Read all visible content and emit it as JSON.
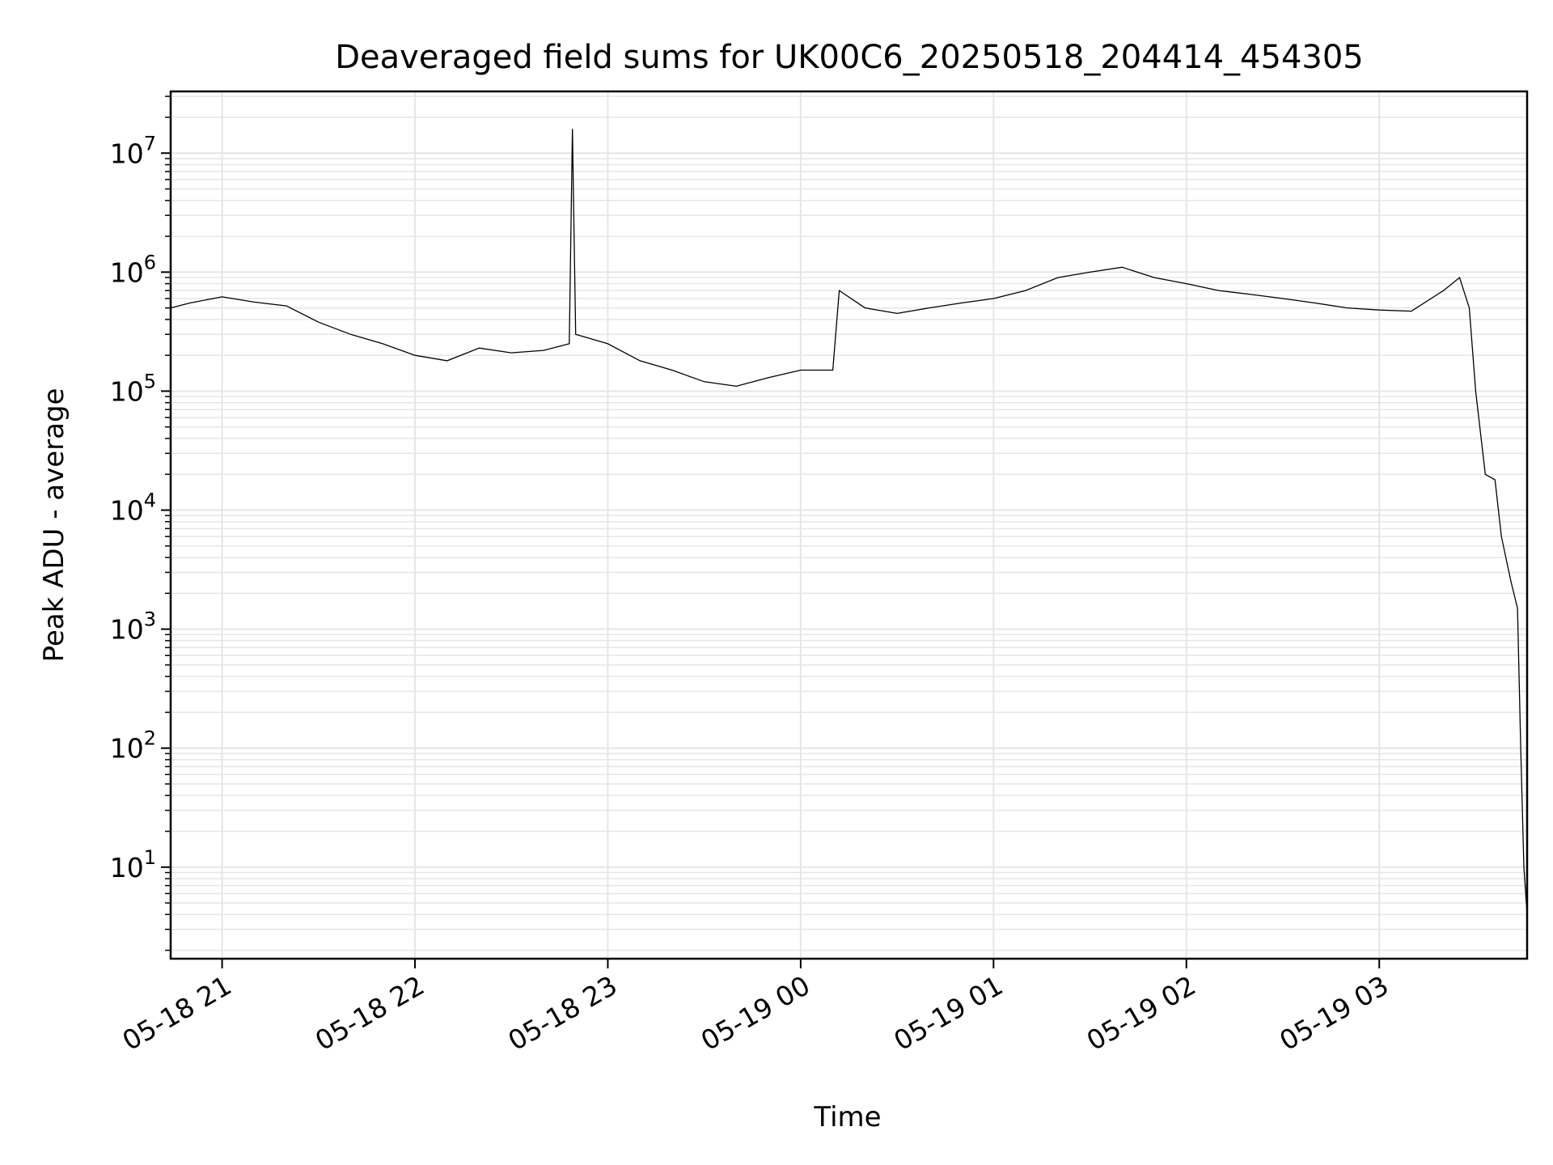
{
  "chart_data": {
    "type": "line",
    "title": "Deaveraged field sums for UK00C6_20250518_204414_454305",
    "xlabel": "Time",
    "ylabel": "Peak ADU - average",
    "yscale": "log",
    "ylim": [
      1.7,
      33000000
    ],
    "xlim": [
      "2025-05-18 20:44",
      "2025-05-19 03:46"
    ],
    "grid": true,
    "line_color": "#000000",
    "grid_color": "#e6e6e6",
    "x_ticks": [
      {
        "value": "2025-05-18 21:00",
        "label": "05-18 21"
      },
      {
        "value": "2025-05-18 22:00",
        "label": "05-18 22"
      },
      {
        "value": "2025-05-18 23:00",
        "label": "05-18 23"
      },
      {
        "value": "2025-05-19 00:00",
        "label": "05-19 00"
      },
      {
        "value": "2025-05-19 01:00",
        "label": "05-19 01"
      },
      {
        "value": "2025-05-19 02:00",
        "label": "05-19 02"
      },
      {
        "value": "2025-05-19 03:00",
        "label": "05-19 03"
      }
    ],
    "y_ticks": [
      {
        "value": 10,
        "base": "10",
        "exp": "1"
      },
      {
        "value": 100,
        "base": "10",
        "exp": "2"
      },
      {
        "value": 1000,
        "base": "10",
        "exp": "3"
      },
      {
        "value": 10000,
        "base": "10",
        "exp": "4"
      },
      {
        "value": 100000,
        "base": "10",
        "exp": "5"
      },
      {
        "value": 1000000,
        "base": "10",
        "exp": "6"
      },
      {
        "value": 10000000,
        "base": "10",
        "exp": "7"
      }
    ],
    "series": [
      {
        "x": [
          "2025-05-18 20:44",
          "2025-05-18 20:50",
          "2025-05-18 21:00",
          "2025-05-18 21:10",
          "2025-05-18 21:20",
          "2025-05-18 21:30",
          "2025-05-18 21:40",
          "2025-05-18 21:50",
          "2025-05-18 22:00",
          "2025-05-18 22:10",
          "2025-05-18 22:20",
          "2025-05-18 22:30",
          "2025-05-18 22:40",
          "2025-05-18 22:48",
          "2025-05-18 22:49",
          "2025-05-18 22:50",
          "2025-05-18 23:00",
          "2025-05-18 23:10",
          "2025-05-18 23:20",
          "2025-05-18 23:30",
          "2025-05-18 23:40",
          "2025-05-18 23:50",
          "2025-05-19 00:00",
          "2025-05-19 00:10",
          "2025-05-19 00:12",
          "2025-05-19 00:20",
          "2025-05-19 00:30",
          "2025-05-19 00:40",
          "2025-05-19 00:50",
          "2025-05-19 01:00",
          "2025-05-19 01:10",
          "2025-05-19 01:20",
          "2025-05-19 01:30",
          "2025-05-19 01:40",
          "2025-05-19 01:50",
          "2025-05-19 02:00",
          "2025-05-19 02:10",
          "2025-05-19 02:20",
          "2025-05-19 02:30",
          "2025-05-19 02:40",
          "2025-05-19 02:50",
          "2025-05-19 03:00",
          "2025-05-19 03:10",
          "2025-05-19 03:20",
          "2025-05-19 03:25",
          "2025-05-19 03:28",
          "2025-05-19 03:30",
          "2025-05-19 03:33",
          "2025-05-19 03:36",
          "2025-05-19 03:38",
          "2025-05-19 03:41",
          "2025-05-19 03:43",
          "2025-05-19 03:44",
          "2025-05-19 03:45",
          "2025-05-19 03:46"
        ],
        "y": [
          500000,
          550000,
          620000,
          560000,
          520000,
          380000,
          300000,
          250000,
          200000,
          180000,
          230000,
          210000,
          220000,
          250000,
          16000000,
          300000,
          250000,
          180000,
          150000,
          120000,
          110000,
          130000,
          150000,
          150000,
          700000,
          500000,
          450000,
          500000,
          550000,
          600000,
          700000,
          900000,
          1000000,
          1100000,
          900000,
          800000,
          700000,
          650000,
          600000,
          550000,
          500000,
          480000,
          470000,
          700000,
          900000,
          500000,
          100000,
          20000,
          18000,
          6000,
          2500,
          1500,
          100,
          10,
          4
        ]
      }
    ]
  }
}
